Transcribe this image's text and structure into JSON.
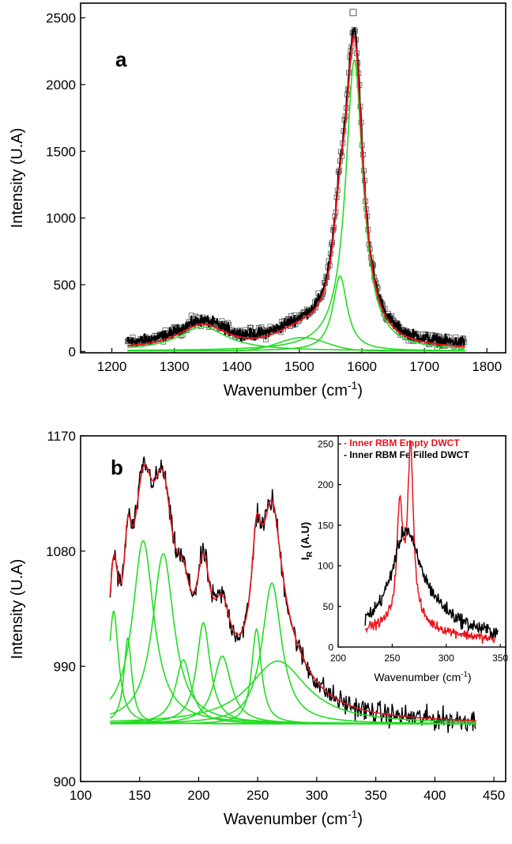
{
  "chart_data": [
    {
      "type": "line",
      "panel_label": "a",
      "xlabel": "Wavenumber (cm",
      "xlabel_sup": "-1",
      "xlabel_end": ")",
      "ylabel": "Intensity (U.A)",
      "xlim": [
        1150,
        1830
      ],
      "ylim": [
        -10,
        2610
      ],
      "xticks": [
        1200,
        1300,
        1400,
        1500,
        1600,
        1700,
        1800
      ],
      "yticks": [
        0,
        500,
        1000,
        1500,
        2000,
        2500
      ],
      "colors": {
        "data": "#000000",
        "markers": "#555555",
        "fit": "#e8141c",
        "components": "#22dd22"
      },
      "x_range": [
        1225,
        1765
      ],
      "components": [
        {
          "type": "lorentzian",
          "center": 1345,
          "amplitude": 180,
          "hwhm": 48
        },
        {
          "type": "gaussian",
          "center": 1505,
          "amplitude": 100,
          "sigma": 38
        },
        {
          "type": "lorentzian",
          "center": 1565,
          "amplitude": 560,
          "hwhm": 14
        },
        {
          "type": "lorentzian",
          "center": 1588,
          "amplitude": 2180,
          "hwhm": 17
        }
      ],
      "data_peak": {
        "x": 1586,
        "y": 2540
      }
    },
    {
      "type": "line",
      "panel_label": "b",
      "xlabel": "Wavenumber (cm",
      "xlabel_sup": "-1",
      "xlabel_end": ")",
      "ylabel": "Intensity (U.A)",
      "xlim": [
        100,
        460
      ],
      "ylim": [
        900,
        1170
      ],
      "xticks": [
        100,
        150,
        200,
        250,
        300,
        350,
        400,
        450
      ],
      "yticks": [
        900,
        990,
        1080,
        1170
      ],
      "colors": {
        "data": "#000000",
        "fit": "#e8141c",
        "components": "#22dd22"
      },
      "x_range": [
        125,
        435
      ],
      "baseline": 945,
      "components": [
        {
          "type": "lorentzian",
          "center": 128,
          "amplitude": 88,
          "hwhm": 5
        },
        {
          "type": "lorentzian",
          "center": 140,
          "amplitude": 67,
          "hwhm": 4
        },
        {
          "type": "lorentzian",
          "center": 153,
          "amplitude": 143,
          "hwhm": 11
        },
        {
          "type": "lorentzian",
          "center": 170,
          "amplitude": 133,
          "hwhm": 11
        },
        {
          "type": "lorentzian",
          "center": 187,
          "amplitude": 50,
          "hwhm": 8
        },
        {
          "type": "lorentzian",
          "center": 204,
          "amplitude": 79,
          "hwhm": 7
        },
        {
          "type": "lorentzian",
          "center": 220,
          "amplitude": 53,
          "hwhm": 9
        },
        {
          "type": "lorentzian",
          "center": 249,
          "amplitude": 74,
          "hwhm": 5
        },
        {
          "type": "lorentzian",
          "center": 262,
          "amplitude": 110,
          "hwhm": 10
        },
        {
          "type": "lorentzian",
          "center": 267,
          "amplitude": 49,
          "hwhm": 30
        }
      ],
      "inset": {
        "type": "line",
        "xlabel": "Wavenumber (cm",
        "xlabel_sup": "-1",
        "xlabel_end": ")",
        "ylabel": "I",
        "ylabel_sub": "R",
        "ylabel_end": " (A.U)",
        "xlim": [
          200,
          355
        ],
        "ylim": [
          0,
          260
        ],
        "xticks": [
          200,
          250,
          300,
          350
        ],
        "yticks": [
          0,
          50,
          100,
          150,
          200,
          250
        ],
        "legend": [
          {
            "label": "- Inner RBM Empty DWCT",
            "color": "#e8141c"
          },
          {
            "label": "- Inner RBM Fe Filled DWCT",
            "color": "#000000"
          }
        ],
        "series": [
          {
            "name": "Inner RBM Empty DWCT",
            "color": "#e8141c",
            "x_range": [
              225,
              345
            ],
            "baseline": 20,
            "decay_from": 280,
            "components": [
              {
                "center": 257,
                "amplitude": 128,
                "hwhm": 3
              },
              {
                "center": 267,
                "amplitude": 205,
                "hwhm": 3
              },
              {
                "center": 262,
                "amplitude": 25,
                "hwhm": 12
              }
            ]
          },
          {
            "name": "Inner RBM Fe Filled DWCT",
            "color": "#000000",
            "x_range": [
              225,
              348
            ],
            "baseline": 8,
            "components": [
              {
                "center": 262,
                "amplitude": 95,
                "hwhm": 14
              },
              {
                "center": 272,
                "amplitude": 45,
                "hwhm": 35
              }
            ]
          }
        ]
      }
    }
  ]
}
